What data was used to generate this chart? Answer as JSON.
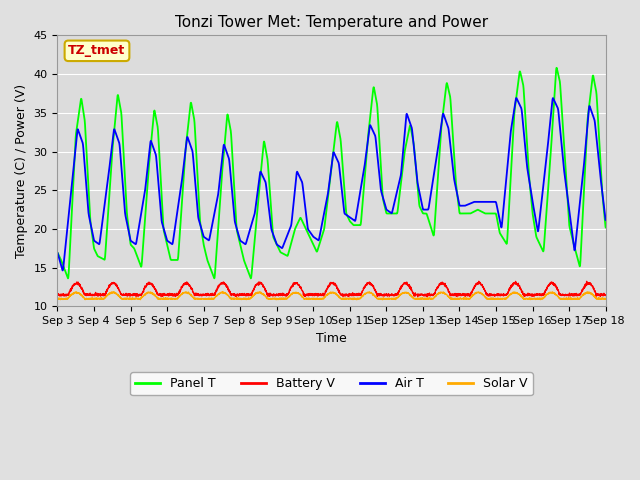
{
  "title": "Tonzi Tower Met: Temperature and Power",
  "xlabel": "Time",
  "ylabel": "Temperature (C) / Power (V)",
  "ylim": [
    10,
    45
  ],
  "xlim": [
    0,
    15
  ],
  "fig_bg": "#e0e0e0",
  "plot_bg": "#dcdcdc",
  "annotation_text": "TZ_tmet",
  "annotation_color": "#cc0000",
  "annotation_bg": "#ffffcc",
  "annotation_border": "#ccaa00",
  "tick_labels": [
    "Sep 3",
    "Sep 4",
    "Sep 5",
    "Sep 6",
    "Sep 7",
    "Sep 8",
    "Sep 9",
    "Sep 10",
    "Sep 11",
    "Sep 12",
    "Sep 13",
    "Sep 14",
    "Sep 15",
    "Sep 16",
    "Sep 17",
    "Sep 18"
  ],
  "colors": {
    "panel_t": "#00ff00",
    "battery_v": "#ff0000",
    "air_t": "#0000ff",
    "solar_v": "#ffaa00"
  },
  "legend_labels": [
    "Panel T",
    "Battery V",
    "Air T",
    "Solar V"
  ],
  "panel_t_data": [
    [
      0.0,
      17.0
    ],
    [
      0.1,
      16.0
    ],
    [
      0.3,
      13.5
    ],
    [
      0.5,
      32.0
    ],
    [
      0.65,
      37.0
    ],
    [
      0.75,
      34.0
    ],
    [
      0.9,
      21.0
    ],
    [
      1.0,
      17.5
    ],
    [
      1.1,
      16.5
    ],
    [
      1.3,
      16.0
    ],
    [
      1.5,
      30.0
    ],
    [
      1.65,
      37.5
    ],
    [
      1.75,
      35.0
    ],
    [
      1.9,
      22.0
    ],
    [
      2.0,
      18.0
    ],
    [
      2.1,
      17.5
    ],
    [
      2.3,
      15.0
    ],
    [
      2.5,
      28.0
    ],
    [
      2.65,
      35.5
    ],
    [
      2.75,
      33.0
    ],
    [
      2.9,
      20.0
    ],
    [
      3.0,
      18.0
    ],
    [
      3.1,
      16.0
    ],
    [
      3.3,
      16.0
    ],
    [
      3.5,
      30.0
    ],
    [
      3.65,
      36.5
    ],
    [
      3.75,
      34.0
    ],
    [
      3.9,
      21.0
    ],
    [
      4.0,
      18.0
    ],
    [
      4.1,
      16.0
    ],
    [
      4.3,
      13.5
    ],
    [
      4.5,
      27.0
    ],
    [
      4.65,
      35.0
    ],
    [
      4.75,
      32.5
    ],
    [
      4.9,
      20.0
    ],
    [
      5.0,
      18.0
    ],
    [
      5.1,
      16.0
    ],
    [
      5.3,
      13.5
    ],
    [
      5.5,
      24.0
    ],
    [
      5.65,
      31.5
    ],
    [
      5.75,
      29.0
    ],
    [
      5.9,
      19.0
    ],
    [
      6.0,
      18.0
    ],
    [
      6.1,
      17.0
    ],
    [
      6.3,
      16.5
    ],
    [
      6.5,
      20.0
    ],
    [
      6.65,
      21.5
    ],
    [
      6.8,
      20.0
    ],
    [
      7.0,
      18.0
    ],
    [
      7.1,
      17.0
    ],
    [
      7.3,
      20.0
    ],
    [
      7.5,
      28.0
    ],
    [
      7.65,
      34.0
    ],
    [
      7.75,
      31.5
    ],
    [
      7.9,
      22.0
    ],
    [
      8.0,
      21.0
    ],
    [
      8.1,
      20.5
    ],
    [
      8.3,
      20.5
    ],
    [
      8.5,
      32.0
    ],
    [
      8.65,
      38.5
    ],
    [
      8.75,
      36.0
    ],
    [
      8.9,
      24.0
    ],
    [
      9.0,
      22.0
    ],
    [
      9.1,
      22.0
    ],
    [
      9.3,
      22.0
    ],
    [
      9.5,
      30.0
    ],
    [
      9.65,
      33.5
    ],
    [
      9.75,
      31.0
    ],
    [
      9.9,
      23.0
    ],
    [
      10.0,
      22.0
    ],
    [
      10.1,
      22.0
    ],
    [
      10.3,
      19.0
    ],
    [
      10.5,
      33.0
    ],
    [
      10.65,
      39.0
    ],
    [
      10.75,
      37.0
    ],
    [
      10.9,
      26.0
    ],
    [
      11.0,
      22.0
    ],
    [
      11.1,
      22.0
    ],
    [
      11.3,
      22.0
    ],
    [
      11.5,
      22.5
    ],
    [
      11.7,
      22.0
    ],
    [
      12.0,
      22.0
    ],
    [
      12.1,
      19.5
    ],
    [
      12.3,
      18.0
    ],
    [
      12.5,
      35.0
    ],
    [
      12.65,
      40.5
    ],
    [
      12.75,
      38.5
    ],
    [
      12.9,
      27.0
    ],
    [
      13.0,
      22.0
    ],
    [
      13.1,
      19.0
    ],
    [
      13.3,
      17.0
    ],
    [
      13.5,
      30.0
    ],
    [
      13.65,
      41.0
    ],
    [
      13.75,
      39.0
    ],
    [
      13.9,
      28.0
    ],
    [
      14.0,
      20.5
    ],
    [
      14.1,
      18.5
    ],
    [
      14.3,
      15.0
    ],
    [
      14.5,
      34.0
    ],
    [
      14.65,
      40.0
    ],
    [
      14.75,
      37.5
    ],
    [
      14.9,
      25.0
    ],
    [
      15.0,
      20.0
    ]
  ],
  "air_t_data": [
    [
      0.0,
      17.0
    ],
    [
      0.15,
      14.5
    ],
    [
      0.4,
      26.0
    ],
    [
      0.55,
      33.0
    ],
    [
      0.7,
      31.0
    ],
    [
      0.85,
      22.0
    ],
    [
      1.0,
      18.5
    ],
    [
      1.15,
      18.0
    ],
    [
      1.4,
      27.0
    ],
    [
      1.55,
      33.0
    ],
    [
      1.7,
      31.0
    ],
    [
      1.85,
      22.0
    ],
    [
      2.0,
      18.5
    ],
    [
      2.15,
      18.0
    ],
    [
      2.4,
      25.0
    ],
    [
      2.55,
      31.5
    ],
    [
      2.7,
      29.5
    ],
    [
      2.85,
      21.0
    ],
    [
      3.0,
      18.5
    ],
    [
      3.15,
      18.0
    ],
    [
      3.4,
      26.0
    ],
    [
      3.55,
      32.0
    ],
    [
      3.7,
      30.0
    ],
    [
      3.85,
      21.5
    ],
    [
      4.0,
      19.0
    ],
    [
      4.15,
      18.5
    ],
    [
      4.4,
      24.5
    ],
    [
      4.55,
      31.0
    ],
    [
      4.7,
      29.0
    ],
    [
      4.85,
      21.0
    ],
    [
      5.0,
      18.5
    ],
    [
      5.15,
      18.0
    ],
    [
      5.4,
      22.0
    ],
    [
      5.55,
      27.5
    ],
    [
      5.7,
      26.0
    ],
    [
      5.85,
      20.0
    ],
    [
      6.0,
      18.0
    ],
    [
      6.15,
      17.5
    ],
    [
      6.4,
      20.5
    ],
    [
      6.55,
      27.5
    ],
    [
      6.7,
      26.0
    ],
    [
      6.85,
      20.0
    ],
    [
      7.0,
      19.0
    ],
    [
      7.15,
      18.5
    ],
    [
      7.4,
      24.5
    ],
    [
      7.55,
      30.0
    ],
    [
      7.7,
      28.5
    ],
    [
      7.85,
      22.0
    ],
    [
      8.0,
      21.5
    ],
    [
      8.15,
      21.0
    ],
    [
      8.4,
      28.0
    ],
    [
      8.55,
      33.5
    ],
    [
      8.7,
      32.0
    ],
    [
      8.85,
      25.0
    ],
    [
      9.0,
      22.5
    ],
    [
      9.15,
      22.0
    ],
    [
      9.4,
      27.0
    ],
    [
      9.55,
      35.0
    ],
    [
      9.7,
      33.0
    ],
    [
      9.85,
      26.0
    ],
    [
      10.0,
      22.5
    ],
    [
      10.15,
      22.5
    ],
    [
      10.4,
      30.0
    ],
    [
      10.55,
      35.0
    ],
    [
      10.7,
      33.0
    ],
    [
      10.85,
      26.5
    ],
    [
      11.0,
      23.0
    ],
    [
      11.15,
      23.0
    ],
    [
      11.4,
      23.5
    ],
    [
      11.6,
      23.5
    ],
    [
      11.85,
      23.5
    ],
    [
      12.0,
      23.5
    ],
    [
      12.15,
      20.0
    ],
    [
      12.4,
      32.5
    ],
    [
      12.55,
      37.0
    ],
    [
      12.7,
      35.5
    ],
    [
      12.85,
      28.0
    ],
    [
      13.0,
      23.5
    ],
    [
      13.15,
      19.5
    ],
    [
      13.4,
      30.0
    ],
    [
      13.55,
      37.0
    ],
    [
      13.7,
      35.5
    ],
    [
      13.85,
      28.0
    ],
    [
      14.0,
      22.5
    ],
    [
      14.15,
      17.0
    ],
    [
      14.4,
      28.0
    ],
    [
      14.55,
      36.0
    ],
    [
      14.7,
      34.0
    ],
    [
      14.85,
      27.0
    ],
    [
      15.0,
      21.0
    ]
  ],
  "battery_v_base": 11.5,
  "battery_v_peak": 13.0,
  "solar_v_base": 11.0,
  "solar_v_peak": 11.8,
  "grid_color": "#ffffff",
  "title_fontsize": 11,
  "axis_label_fontsize": 9,
  "tick_fontsize": 8,
  "legend_fontsize": 9
}
